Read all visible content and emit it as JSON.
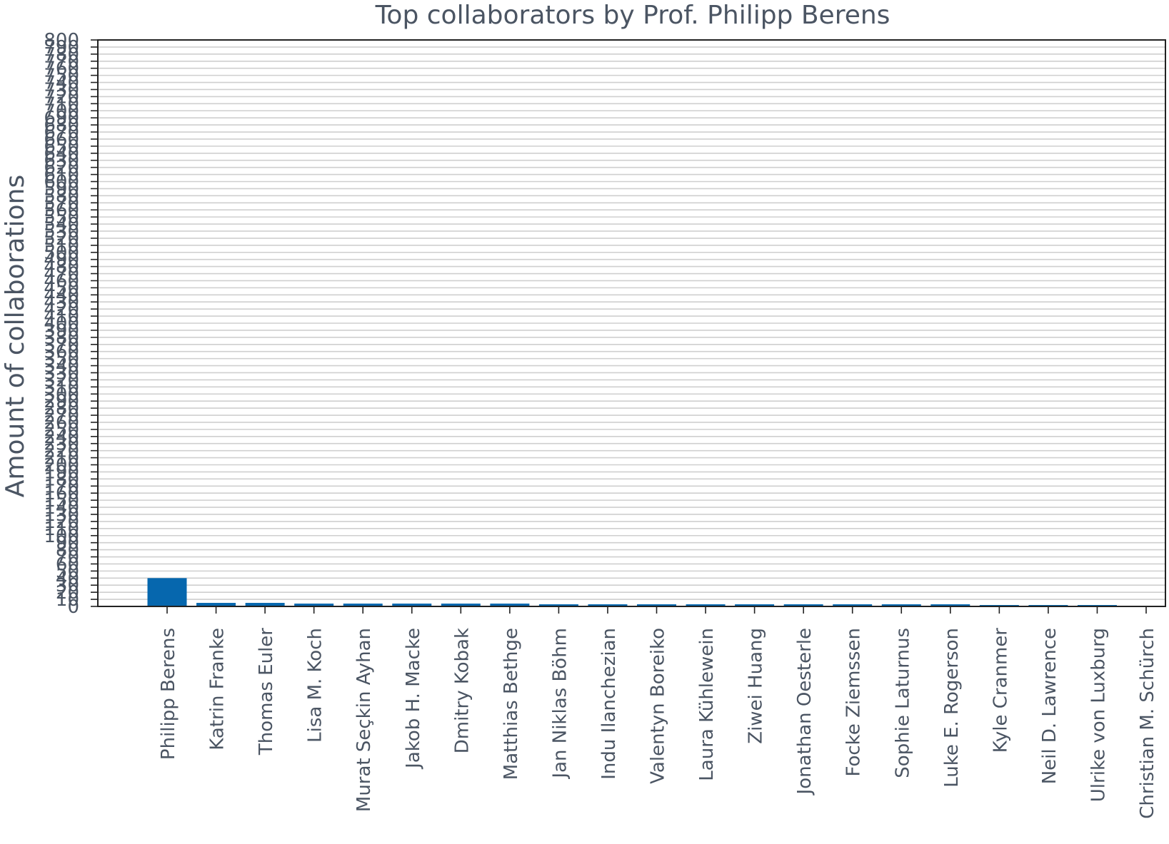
{
  "chart_data": {
    "type": "bar",
    "title": "Top collaborators by Prof. Philipp Berens",
    "xlabel": "",
    "ylabel": "Amount of collaborations",
    "ylim": [
      0,
      800
    ],
    "grid": true,
    "ytick_step": 10,
    "categories": [
      "Philipp Berens",
      "Katrin Franke",
      "Thomas Euler",
      "Lisa M. Koch",
      "Murat Seçkin Ayhan",
      "Jakob H. Macke",
      "Dmitry Kobak",
      "Matthias Bethge",
      "Jan Niklas Böhm",
      "Indu Ilanchezian",
      "Valentyn Boreiko",
      "Laura Kühlewein",
      "Ziwei Huang",
      "Jonathan Oesterle",
      "Focke Ziemssen",
      "Sophie Laturnus",
      "Luke E. Rogerson",
      "Kyle Cranmer",
      "Neil D. Lawrence",
      "Ulrike von Luxburg",
      "Christian M. Schürch"
    ],
    "values": [
      40,
      5,
      5,
      4,
      4,
      4,
      4,
      4,
      3,
      3,
      3,
      3,
      3,
      3,
      3,
      3,
      3,
      2,
      2,
      2,
      1
    ],
    "bar_color": "#0667ae"
  }
}
